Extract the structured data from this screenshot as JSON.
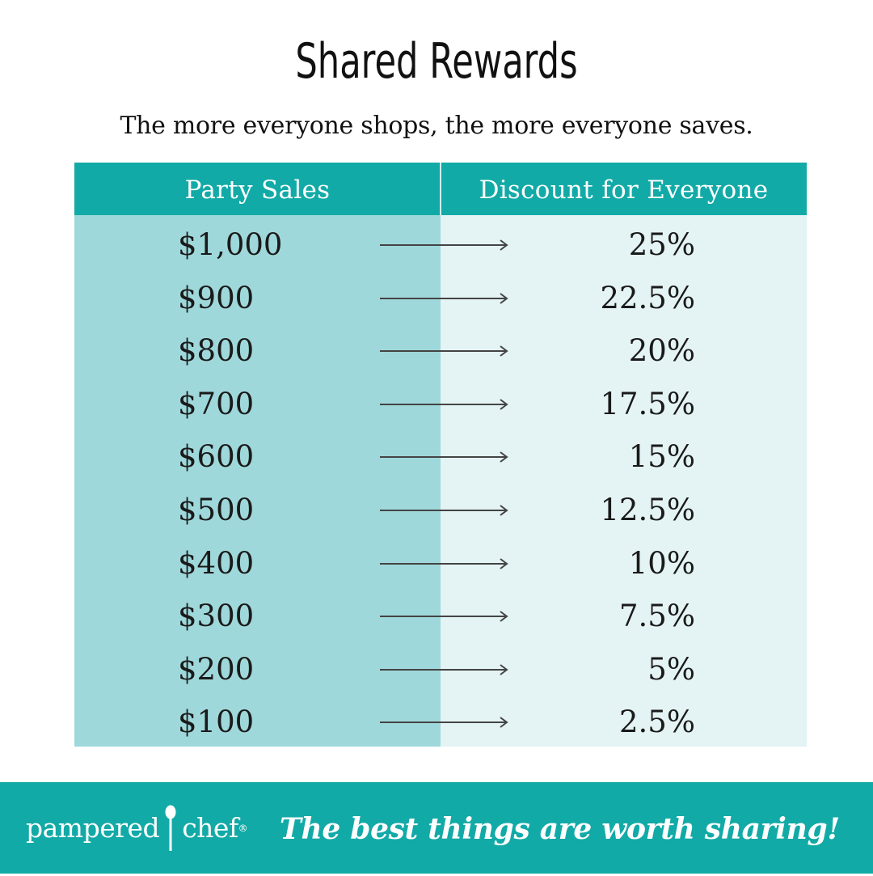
{
  "title": "Shared Rewards",
  "subtitle": "The more everyone shops, the more everyone saves.",
  "table": {
    "headers": [
      "Party Sales",
      "Discount for Everyone"
    ],
    "rows": [
      {
        "sales": "$1,000",
        "discount": "25%"
      },
      {
        "sales": "$900",
        "discount": "22.5%"
      },
      {
        "sales": "$800",
        "discount": "20%"
      },
      {
        "sales": "$700",
        "discount": "17.5%"
      },
      {
        "sales": "$600",
        "discount": "15%"
      },
      {
        "sales": "$500",
        "discount": "12.5%"
      },
      {
        "sales": "$400",
        "discount": "10%"
      },
      {
        "sales": "$300",
        "discount": "7.5%"
      },
      {
        "sales": "$200",
        "discount": "5%"
      },
      {
        "sales": "$100",
        "discount": "2.5%"
      }
    ],
    "arrow_icon": "arrow-right-icon"
  },
  "footer": {
    "brand_left": "pampered",
    "brand_right": "chef",
    "brand_icon": "spoon-icon",
    "tagline": "The best things are worth sharing!"
  },
  "colors": {
    "teal": "#12aaa7",
    "left_column": "#9fd8da",
    "right_column": "#e4f3f4"
  }
}
